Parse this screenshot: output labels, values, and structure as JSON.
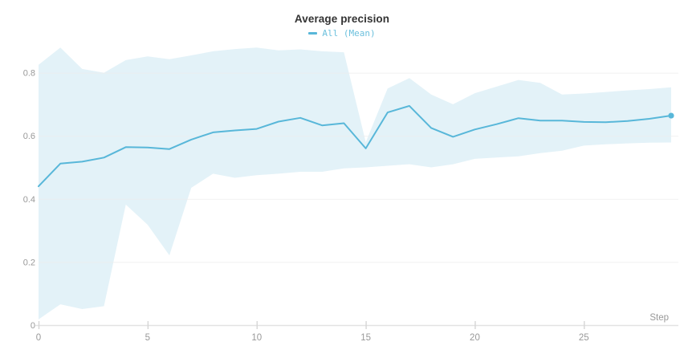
{
  "colors": {
    "accent": "#58b7d9",
    "legend_text": "#6cc0dd",
    "band_fill": "#e3f2f8",
    "grid_line": "#ededed",
    "axis_line": "#e2e2e2",
    "tick_mark": "#d6d6d6",
    "tick_label": "#999999",
    "title_text": "#333333",
    "background": "#ffffff"
  },
  "chart_data": {
    "type": "line",
    "title": "Average precision",
    "xlabel": "Step",
    "ylabel": "",
    "legend_position": "top-center",
    "grid": "horizontal",
    "xlim": [
      0,
      29.4
    ],
    "ylim": [
      0,
      0.89
    ],
    "x_ticks": [
      0,
      5,
      10,
      15,
      20,
      25
    ],
    "y_ticks": [
      0,
      0.2,
      0.4,
      0.6,
      0.8
    ],
    "legend": [
      {
        "label": "All (Mean)",
        "marker": "line-dash"
      }
    ],
    "x": [
      0,
      1,
      2,
      3,
      4,
      5,
      6,
      7,
      8,
      9,
      10,
      11,
      12,
      13,
      14,
      15,
      16,
      17,
      18,
      19,
      20,
      21,
      22,
      23,
      24,
      25,
      26,
      27,
      28,
      29
    ],
    "series": [
      {
        "name": "All (Mean)",
        "values": [
          0.44,
          0.512,
          0.518,
          0.531,
          0.564,
          0.563,
          0.558,
          0.588,
          0.611,
          0.617,
          0.622,
          0.645,
          0.657,
          0.633,
          0.64,
          0.56,
          0.674,
          0.695,
          0.625,
          0.597,
          0.62,
          0.637,
          0.656,
          0.648,
          0.648,
          0.644,
          0.643,
          0.647,
          0.654,
          0.664
        ],
        "band_upper": [
          0.825,
          0.88,
          0.812,
          0.8,
          0.84,
          0.852,
          0.843,
          0.855,
          0.868,
          0.875,
          0.88,
          0.871,
          0.874,
          0.868,
          0.865,
          0.58,
          0.75,
          0.783,
          0.731,
          0.7,
          0.735,
          0.756,
          0.777,
          0.768,
          0.731,
          0.734,
          0.739,
          0.744,
          0.748,
          0.754
        ],
        "band_lower": [
          0.018,
          0.066,
          0.051,
          0.06,
          0.382,
          0.318,
          0.221,
          0.435,
          0.48,
          0.467,
          0.475,
          0.48,
          0.486,
          0.486,
          0.497,
          0.5,
          0.505,
          0.51,
          0.5,
          0.51,
          0.527,
          0.531,
          0.535,
          0.545,
          0.553,
          0.569,
          0.573,
          0.576,
          0.578,
          0.579
        ],
        "last_point_marker": true
      }
    ]
  }
}
